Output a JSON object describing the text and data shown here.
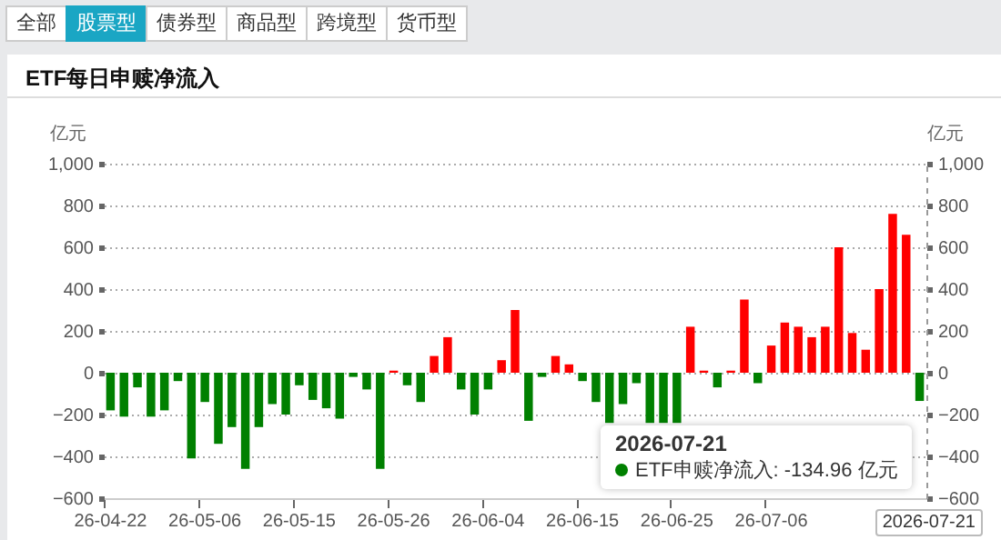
{
  "chart_data": {
    "type": "bar",
    "title": "ETF每日申赎净流入",
    "ylabel": "亿元",
    "y2label": "亿元",
    "annotations": [
      "全部",
      "股票型",
      "债券型",
      "商品型",
      "跨境型",
      "货币型",
      "2026-07-21",
      "ETF申赎净流入: -134.96 亿元",
      "2026-07-21"
    ],
    "categories": [
      "26-04-22",
      null,
      null,
      null,
      null,
      null,
      null,
      "26-05-06",
      null,
      null,
      null,
      null,
      null,
      null,
      "26-05-15",
      null,
      null,
      null,
      null,
      null,
      null,
      "26-05-26",
      null,
      null,
      null,
      null,
      null,
      null,
      "26-06-04",
      null,
      null,
      null,
      null,
      null,
      null,
      "26-06-15",
      null,
      null,
      null,
      null,
      null,
      null,
      "26-06-25",
      null,
      null,
      null,
      null,
      null,
      null,
      "26-07-06",
      null,
      null,
      null,
      null,
      null,
      null,
      null,
      null,
      null,
      null,
      null
    ],
    "values": [
      -180,
      -210,
      -70,
      -210,
      -180,
      -40,
      -410,
      -140,
      -340,
      -260,
      -460,
      -260,
      -150,
      -200,
      -60,
      -130,
      -170,
      -220,
      -20,
      -80,
      -460,
      10,
      -60,
      -140,
      80,
      170,
      -80,
      -200,
      -80,
      60,
      300,
      -230,
      -20,
      80,
      40,
      -40,
      -140,
      -240,
      -150,
      -50,
      -240,
      -240,
      -240,
      220,
      10,
      -70,
      10,
      350,
      -50,
      130,
      240,
      220,
      170,
      220,
      600,
      190,
      110,
      400,
      760,
      660,
      -134.96
    ],
    "colors": [
      "#008000",
      "#008000",
      "#008000",
      "#008000",
      "#008000",
      "#008000",
      "#008000",
      "#008000",
      "#008000",
      "#008000",
      "#008000",
      "#008000",
      "#008000",
      "#008000",
      "#008000",
      "#008000",
      "#008000",
      "#008000",
      "#008000",
      "#008000",
      "#008000",
      "#ff0000",
      "#008000",
      "#008000",
      "#ff0000",
      "#ff0000",
      "#008000",
      "#008000",
      "#008000",
      "#ff0000",
      "#ff0000",
      "#008000",
      "#008000",
      "#ff0000",
      "#ff0000",
      "#008000",
      "#008000",
      "#008000",
      "#008000",
      "#008000",
      "#008000",
      "#008000",
      "#008000",
      "#ff0000",
      "#ff0000",
      "#008000",
      "#ff0000",
      "#ff0000",
      "#008000",
      "#ff0000",
      "#ff0000",
      "#ff0000",
      "#ff0000",
      "#ff0000",
      "#ff0000",
      "#ff0000",
      "#ff0000",
      "#ff0000",
      "#ff0000",
      "#ff0000",
      "#008000"
    ],
    "ylim": [
      -600,
      1000
    ],
    "yticks": [
      -600,
      -400,
      -200,
      0,
      200,
      400,
      600,
      800,
      {
        "value": 1000,
        "label": "1,000"
      }
    ],
    "y2lim": [
      -600,
      1000
    ],
    "y2ticks": [
      -600,
      -400,
      -200,
      0,
      200,
      400,
      600,
      800,
      {
        "value": 1000,
        "label": "1,000"
      }
    ],
    "grid": "y"
  }
}
